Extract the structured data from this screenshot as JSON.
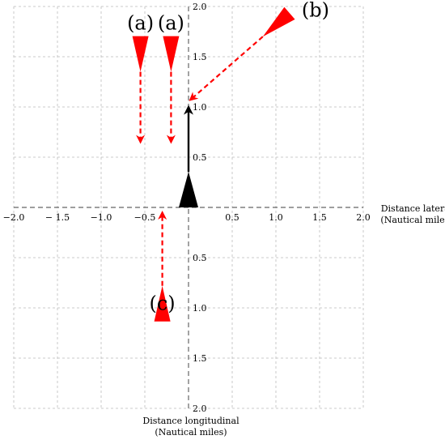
{
  "axes": {
    "x_title_line1": "Distance lateral",
    "x_title_line2": "(Nautical miles)",
    "y_title_line1": "Distance longitudinal",
    "y_title_line2": "(Nautical miles)",
    "x_range": [
      -2.0,
      2.0
    ],
    "y_range": [
      -2.0,
      2.0
    ],
    "x_ticks": [
      {
        "value": -2.0,
        "label": "−2.0"
      },
      {
        "value": -1.5,
        "label": "− 1.5"
      },
      {
        "value": -1.0,
        "label": "−1.0"
      },
      {
        "value": -0.5,
        "label": "−0.5"
      },
      {
        "value": 0.5,
        "label": "0.5"
      },
      {
        "value": 1.0,
        "label": "1.0"
      },
      {
        "value": 1.5,
        "label": "1.5"
      },
      {
        "value": 2.0,
        "label": "2.0"
      }
    ],
    "y_ticks": [
      {
        "value": 2.0,
        "label": "2.0"
      },
      {
        "value": 1.5,
        "label": "1.5"
      },
      {
        "value": 1.0,
        "label": "1.0"
      },
      {
        "value": 0.5,
        "label": "0.5"
      },
      {
        "value": -0.5,
        "label": "0.5"
      },
      {
        "value": -1.0,
        "label": "1.0"
      },
      {
        "value": -1.5,
        "label": "1.5"
      },
      {
        "value": -2.0,
        "label": "2.0"
      }
    ],
    "grid": true
  },
  "colors": {
    "intruder": "#ff0000",
    "ownship": "#000000",
    "grid": "#bbbbbb",
    "axis": "#666666"
  },
  "ownship": {
    "x": 0.0,
    "y": 0.0,
    "heading_to": {
      "x": 0.0,
      "y": 1.0
    }
  },
  "intruders": [
    {
      "label": "(a)",
      "x": -0.55,
      "y": 1.35,
      "to": {
        "x": -0.55,
        "y": 0.65
      }
    },
    {
      "label": "(a)",
      "x": -0.2,
      "y": 1.35,
      "to": {
        "x": -0.2,
        "y": 0.65
      }
    },
    {
      "label": "(b)",
      "x": 0.85,
      "y": 1.7,
      "to": {
        "x": 0.02,
        "y": 1.07
      }
    },
    {
      "label": "(c)",
      "x": -0.3,
      "y": -0.78,
      "to": {
        "x": -0.3,
        "y": -0.05
      }
    }
  ]
}
